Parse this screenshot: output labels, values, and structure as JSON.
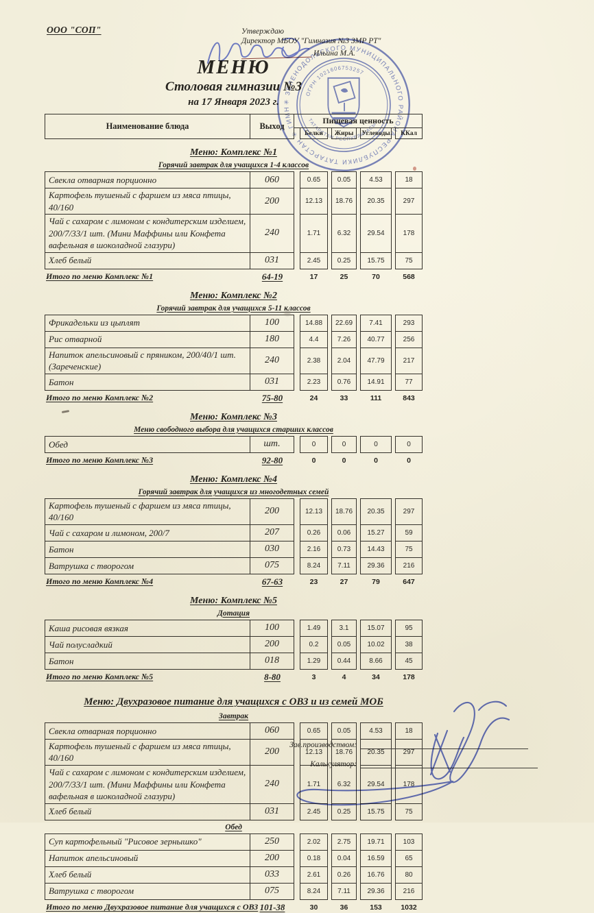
{
  "page": {
    "org": "ООО \"СОП\"",
    "approve": {
      "line1": "Утверждаю",
      "line2": "Директор МБОУ \"Гимназия №3 ЗМР РТ\"",
      "name": "Ильина М.А."
    },
    "title": "МЕНЮ",
    "subtitle": "Столовая гимназии №3",
    "date_line": "на 17 Января 2023 г.",
    "ink_color": "#26241f",
    "pen_blue": "#5565c9",
    "stamp_blue": "#5565bd"
  },
  "table_header": {
    "dish": "Наименование блюда",
    "output": "Выход",
    "nutrition": "Пищевая ценность",
    "cols": [
      "Белки",
      "Жиры",
      "Углеводы",
      "ККал"
    ]
  },
  "stamp": {
    "ring_text": "✳ ЗЕЛЕНОДОЛЬСКОГО МУНИЦИПАЛЬНОГО РАЙОНА РЕСПУБЛИКИ ТАТАРСТАН ✳ ГИМНАЗИЯ №3 ✳",
    "ogrn": "ОГРН 1021606753257",
    "inner_text": "ТАТАРСТАН РЕСПУБЛИКАСЫ",
    "emblem": "zelenodolsk-coat-of-arms-sailboat"
  },
  "sections": [
    {
      "title": "Меню: Комплекс №1",
      "big": false,
      "groups": [
        {
          "subtitle": "Горячий завтрак для учащихся 1-4 классов",
          "rows": [
            {
              "name": "Свекла отварная порционно",
              "out": "060",
              "v": [
                "0.65",
                "0.05",
                "4.53",
                "18"
              ]
            },
            {
              "name": "Картофель тушеный с фаршем из мяса птицы, 40/160",
              "out": "200",
              "v": [
                "12.13",
                "18.76",
                "20.35",
                "297"
              ]
            },
            {
              "name": "Чай с сахаром с лимоном с кондитерским изделием, 200/7/33/1 шт. (Мини Маффины или Конфета вафельная в шоколадной глазури)",
              "out": "240",
              "v": [
                "1.71",
                "6.32",
                "29.54",
                "178"
              ]
            },
            {
              "name": "Хлеб белый",
              "out": "031",
              "v": [
                "2.45",
                "0.25",
                "15.75",
                "75"
              ]
            }
          ]
        }
      ],
      "total": {
        "label": "Итого по меню Комплекс №1",
        "output": "64-19",
        "values": [
          "17",
          "25",
          "70",
          "568"
        ]
      }
    },
    {
      "title": "Меню: Комплекс №2",
      "big": false,
      "groups": [
        {
          "subtitle": "Горячий завтрак для учащихся 5-11 классов",
          "rows": [
            {
              "name": "Фрикадельки из цыплят",
              "out": "100",
              "v": [
                "14.88",
                "22.69",
                "7.41",
                "293"
              ]
            },
            {
              "name": "Рис отварной",
              "out": "180",
              "v": [
                "4.4",
                "7.26",
                "40.77",
                "256"
              ]
            },
            {
              "name": "Напиток апельсиновый с пряником, 200/40/1 шт. (Зареченские)",
              "out": "240",
              "v": [
                "2.38",
                "2.04",
                "47.79",
                "217"
              ]
            },
            {
              "name": "Батон",
              "out": "031",
              "v": [
                "2.23",
                "0.76",
                "14.91",
                "77"
              ]
            }
          ]
        }
      ],
      "total": {
        "label": "Итого по меню Комплекс №2",
        "output": "75-80",
        "values": [
          "24",
          "33",
          "111",
          "843"
        ]
      }
    },
    {
      "title": "Меню: Комплекс №3",
      "big": false,
      "groups": [
        {
          "subtitle": "Меню свободного выбора для учащихся старших классов",
          "rows": [
            {
              "name": "Обед",
              "out": "шт.",
              "v": [
                "0",
                "0",
                "0",
                "0"
              ]
            }
          ]
        }
      ],
      "total": {
        "label": "Итого по меню Комплекс №3",
        "output": "92-80",
        "values": [
          "0",
          "0",
          "0",
          "0"
        ]
      }
    },
    {
      "title": "Меню: Комплекс №4",
      "big": false,
      "groups": [
        {
          "subtitle": "Горячий завтрак для учащихся из многодетных семей",
          "rows": [
            {
              "name": "Картофель тушеный с фаршем из мяса птицы, 40/160",
              "out": "200",
              "v": [
                "12.13",
                "18.76",
                "20.35",
                "297"
              ]
            },
            {
              "name": "Чай с сахаром и лимоном, 200/7",
              "out": "207",
              "v": [
                "0.26",
                "0.06",
                "15.27",
                "59"
              ]
            },
            {
              "name": "Батон",
              "out": "030",
              "v": [
                "2.16",
                "0.73",
                "14.43",
                "75"
              ]
            },
            {
              "name": "Ватрушка с творогом",
              "out": "075",
              "v": [
                "8.24",
                "7.11",
                "29.36",
                "216"
              ]
            }
          ]
        }
      ],
      "total": {
        "label": "Итого по меню Комплекс №4",
        "output": "67-63",
        "values": [
          "23",
          "27",
          "79",
          "647"
        ]
      }
    },
    {
      "title": "Меню: Комплекс №5",
      "big": false,
      "groups": [
        {
          "subtitle": "Дотация",
          "rows": [
            {
              "name": "Каша рисовая вязкая",
              "out": "100",
              "v": [
                "1.49",
                "3.1",
                "15.07",
                "95"
              ]
            },
            {
              "name": "Чай полусладкий",
              "out": "200",
              "v": [
                "0.2",
                "0.05",
                "10.02",
                "38"
              ]
            },
            {
              "name": "Батон",
              "out": "018",
              "v": [
                "1.29",
                "0.44",
                "8.66",
                "45"
              ]
            }
          ]
        }
      ],
      "total": {
        "label": "Итого по меню Комплекс №5",
        "output": "8-80",
        "values": [
          "3",
          "4",
          "34",
          "178"
        ]
      }
    },
    {
      "title": "Меню: Двухразовое питание для учащихся с ОВЗ и из семей МОБ",
      "big": true,
      "groups": [
        {
          "subtitle": "Завтрак",
          "rows": [
            {
              "name": "Свекла отварная порционно",
              "out": "060",
              "v": [
                "0.65",
                "0.05",
                "4.53",
                "18"
              ]
            },
            {
              "name": "Картофель тушеный с фаршем из мяса птицы, 40/160",
              "out": "200",
              "v": [
                "12.13",
                "18.76",
                "20.35",
                "297"
              ]
            },
            {
              "name": "Чай с сахаром с лимоном с кондитерским изделием, 200/7/33/1 шт. (Мини Маффины или Конфета вафельная в шоколадной глазури)",
              "out": "240",
              "v": [
                "1.71",
                "6.32",
                "29.54",
                "178"
              ]
            },
            {
              "name": "Хлеб белый",
              "out": "031",
              "v": [
                "2.45",
                "0.25",
                "15.75",
                "75"
              ]
            }
          ]
        },
        {
          "subtitle": "Обед",
          "rows": [
            {
              "name": "Суп картофельный \"Рисовое зернышко\"",
              "out": "250",
              "v": [
                "2.02",
                "2.75",
                "19.71",
                "103"
              ]
            },
            {
              "name": "Напиток апельсиновый",
              "out": "200",
              "v": [
                "0.18",
                "0.04",
                "16.59",
                "65"
              ]
            },
            {
              "name": "Хлеб белый",
              "out": "033",
              "v": [
                "2.61",
                "0.26",
                "16.76",
                "80"
              ]
            },
            {
              "name": "Ватрушка с творогом",
              "out": "075",
              "v": [
                "8.24",
                "7.11",
                "29.36",
                "216"
              ]
            }
          ]
        }
      ],
      "total": {
        "label": "Итого по меню Двухразовое питание для учащихся с ОВЗ",
        "output": "101-38",
        "values": [
          "30",
          "36",
          "153",
          "1032"
        ]
      }
    }
  ],
  "footer": {
    "label1": "Зав.производством:",
    "label2": "Калькулятор:"
  }
}
